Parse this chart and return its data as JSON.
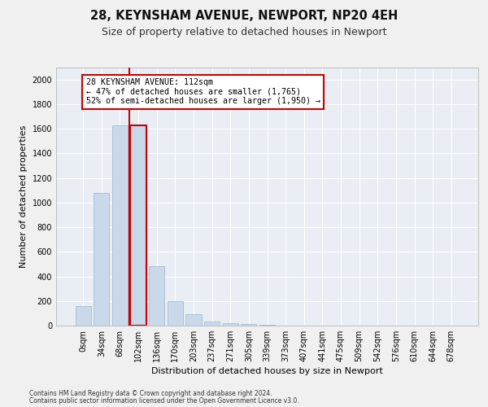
{
  "title_line1": "28, KEYNSHAM AVENUE, NEWPORT, NP20 4EH",
  "title_line2": "Size of property relative to detached houses in Newport",
  "xlabel": "Distribution of detached houses by size in Newport",
  "ylabel": "Number of detached properties",
  "categories": [
    "0sqm",
    "34sqm",
    "68sqm",
    "102sqm",
    "136sqm",
    "170sqm",
    "203sqm",
    "237sqm",
    "271sqm",
    "305sqm",
    "339sqm",
    "373sqm",
    "407sqm",
    "441sqm",
    "475sqm",
    "509sqm",
    "542sqm",
    "576sqm",
    "610sqm",
    "644sqm",
    "678sqm"
  ],
  "values": [
    160,
    1075,
    1630,
    1630,
    480,
    200,
    95,
    35,
    22,
    12,
    8,
    0,
    0,
    0,
    0,
    0,
    0,
    0,
    0,
    0,
    0
  ],
  "bar_color": "#c9d9ea",
  "bar_edgecolor": "#9ab5cc",
  "highlight_bar_index": 3,
  "highlight_bar_color": "#c9d9ea",
  "highlight_bar_edgecolor": "#cc0000",
  "red_line_x": 2.5,
  "annotation_line1": "28 KEYNSHAM AVENUE: 112sqm",
  "annotation_line2": "← 47% of detached houses are smaller (1,765)",
  "annotation_line3": "52% of semi-detached houses are larger (1,950) →",
  "box_edgecolor": "#cc0000",
  "ylim": [
    0,
    2100
  ],
  "yticks": [
    0,
    200,
    400,
    600,
    800,
    1000,
    1200,
    1400,
    1600,
    1800,
    2000
  ],
  "footnote1": "Contains HM Land Registry data © Crown copyright and database right 2024.",
  "footnote2": "Contains public sector information licensed under the Open Government Licence v3.0.",
  "plot_bg": "#e8eef4",
  "fig_bg": "#f0f0f0",
  "grid_color": "#ffffff",
  "title_fontsize": 10.5,
  "subtitle_fontsize": 9,
  "axis_label_fontsize": 8,
  "tick_fontsize": 7,
  "ylabel_fontsize": 8
}
